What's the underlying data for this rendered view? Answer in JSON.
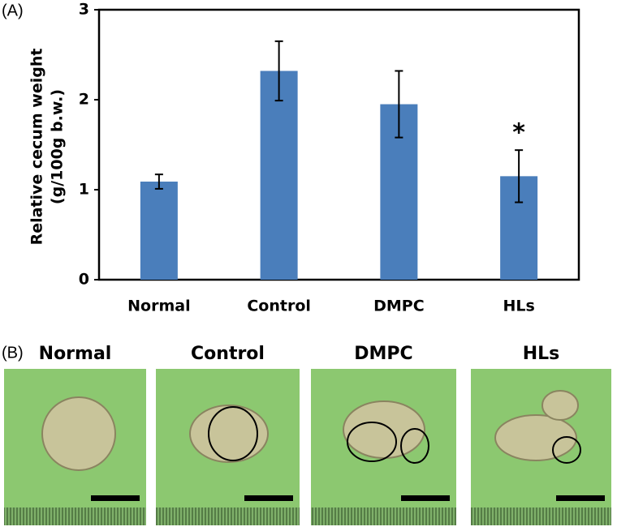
{
  "panel_a_label": "(A)",
  "chart_data": {
    "type": "bar",
    "ylabel": [
      "Relative cecum weight",
      "(g/100g b.w.)"
    ],
    "categories": [
      "Normal",
      "Control",
      "DMPC",
      "HLs"
    ],
    "values": [
      1.09,
      2.32,
      1.95,
      1.15
    ],
    "errors": [
      0.08,
      0.33,
      0.37,
      0.29
    ],
    "color": "#4a7ebb",
    "ylim": [
      0,
      3
    ],
    "yticks": [
      0,
      1,
      2,
      3
    ],
    "annotations": [
      {
        "category": 3,
        "text": "*"
      }
    ]
  },
  "panel_b_label": "(B)",
  "photos": [
    {
      "label": "Normal"
    },
    {
      "label": "Control"
    },
    {
      "label": "DMPC"
    },
    {
      "label": "HLs"
    }
  ]
}
